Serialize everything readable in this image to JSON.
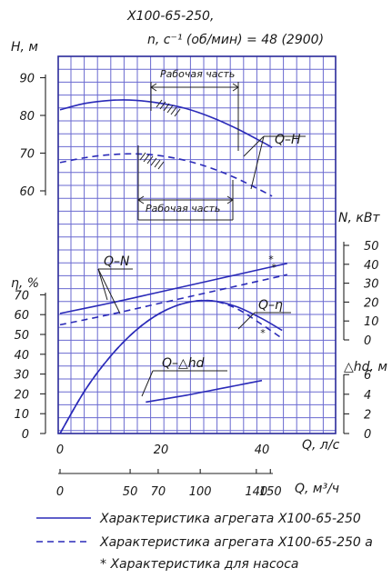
{
  "chart_data": {
    "type": "line",
    "title": "X100-65-250,",
    "subtitle": "n, с⁻¹ (об/мин) = 48 (2900)",
    "x_axis": {
      "label_q_ls": "Q, л/с",
      "ticks_q_ls": [
        0,
        20,
        40
      ],
      "label_q_m3h": "Q, м³/ч",
      "ticks_q_m3h": [
        "0",
        "50",
        "70",
        "100",
        "140",
        "150"
      ],
      "range_q_ls": [
        0,
        50
      ]
    },
    "axes": {
      "H": {
        "label": "H, м",
        "ticks": [
          60,
          70,
          80,
          90
        ],
        "range": [
          55,
          90
        ]
      },
      "N": {
        "label": "N, кВт",
        "ticks": [
          0,
          10,
          20,
          30,
          40,
          50
        ],
        "range": [
          0,
          50
        ]
      },
      "eta": {
        "label": "η, %",
        "ticks": [
          0,
          10,
          20,
          30,
          40,
          50,
          60,
          70
        ],
        "range": [
          0,
          70
        ]
      },
      "dhd": {
        "label": "△hd, м",
        "ticks": [
          0,
          2,
          4,
          6
        ],
        "range": [
          0,
          8
        ]
      }
    },
    "series": [
      {
        "name": "Q–H",
        "key": "QH",
        "axis": "H",
        "style": "solid",
        "points": [
          [
            0,
            81.5
          ],
          [
            5,
            83.2
          ],
          [
            10,
            84.0
          ],
          [
            15,
            84.0
          ],
          [
            20,
            83.2
          ],
          [
            25,
            81.8
          ],
          [
            30,
            79.5
          ],
          [
            35,
            76.5
          ],
          [
            40,
            73
          ],
          [
            42,
            71.5
          ]
        ]
      },
      {
        "name": "Q–H",
        "key": "QHa",
        "axis": "H",
        "style": "dash",
        "points": [
          [
            0,
            67.5
          ],
          [
            5,
            68.8
          ],
          [
            10,
            69.6
          ],
          [
            15,
            69.8
          ],
          [
            20,
            69.3
          ],
          [
            25,
            68.0
          ],
          [
            30,
            66.0
          ],
          [
            35,
            63.3
          ],
          [
            40,
            60.0
          ],
          [
            42,
            58.6
          ]
        ]
      },
      {
        "name": "Q–N",
        "key": "QN",
        "axis": "N",
        "style": "solid",
        "points": [
          [
            0,
            14
          ],
          [
            10,
            19.5
          ],
          [
            20,
            25.5
          ],
          [
            30,
            31.5
          ],
          [
            40,
            37.5
          ],
          [
            45,
            40.5
          ]
        ]
      },
      {
        "name": "Q–N",
        "key": "QNa",
        "axis": "N",
        "style": "dash",
        "points": [
          [
            0,
            8
          ],
          [
            10,
            13.5
          ],
          [
            20,
            19.5
          ],
          [
            30,
            25.5
          ],
          [
            40,
            31.5
          ],
          [
            45,
            34.5
          ]
        ]
      },
      {
        "name": "Q–η",
        "key": "QE",
        "axis": "eta",
        "style": "solid",
        "points": [
          [
            0,
            0
          ],
          [
            5,
            22
          ],
          [
            10,
            39
          ],
          [
            15,
            52
          ],
          [
            20,
            61
          ],
          [
            25,
            66
          ],
          [
            30,
            67
          ],
          [
            35,
            64
          ],
          [
            40,
            58
          ],
          [
            44,
            52
          ]
        ]
      },
      {
        "name": "Q–η",
        "key": "QEa",
        "axis": "eta",
        "style": "dash",
        "points": [
          [
            0,
            0
          ],
          [
            5,
            22
          ],
          [
            10,
            39
          ],
          [
            15,
            52
          ],
          [
            20,
            61
          ],
          [
            25,
            66
          ],
          [
            30,
            67
          ],
          [
            35,
            63
          ],
          [
            40,
            55
          ],
          [
            44,
            48
          ]
        ]
      },
      {
        "name": "Q–△hd",
        "key": "QD",
        "axis": "dhd",
        "style": "solid",
        "points": [
          [
            17,
            3.2
          ],
          [
            25,
            3.9
          ],
          [
            30,
            4.4
          ],
          [
            35,
            4.9
          ],
          [
            40,
            5.4
          ]
        ]
      }
    ],
    "annotations": {
      "work_zone": "Рабочая часть",
      "work_zone_a": "Рабочая часть",
      "label_qh": "Q–H",
      "label_qn": "Q–N",
      "label_qeta": "Q–η",
      "label_qdhd": "Q–△hd"
    },
    "legend": {
      "placement": "bottom",
      "items": [
        {
          "text": "Характеристика агрегата X100-65-250",
          "style": "solid"
        },
        {
          "text": "Характеристика агрегата X100-65-250 а",
          "style": "dash"
        },
        {
          "text": "* Характеристика для насоса",
          "style": "none"
        }
      ]
    },
    "colors": {
      "grid": "#6a6ad0",
      "curve": "#2a2ab8",
      "frame": "#2a2a9a"
    },
    "grid": true
  }
}
